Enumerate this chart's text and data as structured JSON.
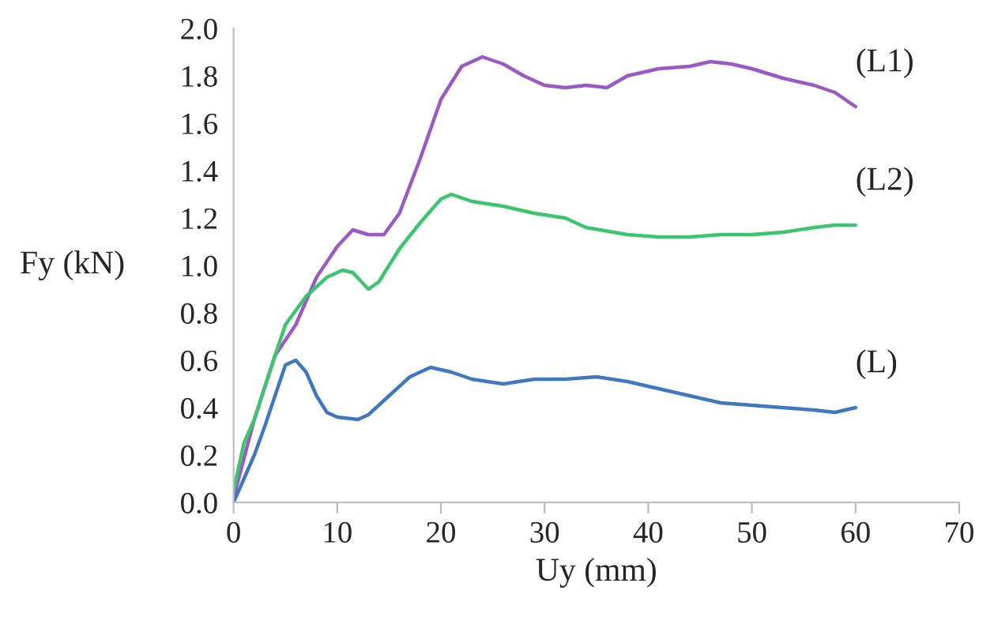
{
  "chart_data": {
    "type": "line",
    "xlabel": "Uy (mm)",
    "ylabel": "Fy (kN)",
    "xlim": [
      0,
      70
    ],
    "xticks": [
      0,
      10,
      20,
      30,
      40,
      50,
      60,
      70
    ],
    "ylim": [
      0,
      2.0
    ],
    "yticks": [
      {
        "value": 0,
        "label": "0.0"
      },
      {
        "value": 0.2,
        "label": "0.2"
      },
      {
        "value": 0.4,
        "label": "0.4"
      },
      {
        "value": 0.6,
        "label": "0.6"
      },
      {
        "value": 0.8,
        "label": "0.8"
      },
      {
        "value": 1.0,
        "label": "1.0"
      },
      {
        "value": 1.2,
        "label": "1.2"
      },
      {
        "value": 1.4,
        "label": "1.4"
      },
      {
        "value": 1.6,
        "label": "1.6"
      },
      {
        "value": 1.8,
        "label": "1.8"
      },
      {
        "value": 2.0,
        "label": "2.0"
      }
    ],
    "grid": false,
    "legend": false,
    "marker": "none",
    "line_style": "solid",
    "series": [
      {
        "name": "(L1)",
        "color": "#9b59c6",
        "x": [
          0,
          2,
          4,
          6,
          8,
          10,
          11.5,
          13,
          14.5,
          16,
          18,
          20,
          22,
          24,
          26,
          28,
          30,
          32,
          34,
          36,
          38,
          41,
          44,
          46,
          48,
          50,
          53,
          56,
          58,
          60
        ],
        "values": [
          0.02,
          0.35,
          0.62,
          0.75,
          0.95,
          1.08,
          1.15,
          1.13,
          1.13,
          1.22,
          1.45,
          1.7,
          1.84,
          1.88,
          1.85,
          1.8,
          1.76,
          1.75,
          1.76,
          1.75,
          1.8,
          1.83,
          1.84,
          1.86,
          1.85,
          1.83,
          1.79,
          1.76,
          1.73,
          1.67
        ]
      },
      {
        "name": "(L2)",
        "color": "#3cc46e",
        "x": [
          0,
          1,
          2,
          4,
          5,
          7,
          9,
          10.5,
          11.5,
          13,
          14,
          16,
          18,
          20,
          21,
          23,
          26,
          29,
          32,
          34,
          38,
          41,
          44,
          47,
          50,
          53,
          56,
          58,
          60
        ],
        "values": [
          0.05,
          0.25,
          0.35,
          0.62,
          0.75,
          0.87,
          0.95,
          0.98,
          0.97,
          0.9,
          0.93,
          1.07,
          1.18,
          1.28,
          1.3,
          1.27,
          1.25,
          1.22,
          1.2,
          1.16,
          1.13,
          1.12,
          1.12,
          1.13,
          1.13,
          1.14,
          1.16,
          1.17,
          1.17
        ]
      },
      {
        "name": "(L)",
        "color": "#3f78c0",
        "x": [
          0,
          1,
          2,
          3,
          4,
          5,
          6,
          7,
          8,
          9,
          10,
          12,
          13,
          15,
          17,
          19,
          21,
          23,
          26,
          29,
          32,
          35,
          38,
          41,
          44,
          47,
          50,
          53,
          56,
          58,
          60
        ],
        "values": [
          0.0,
          0.1,
          0.2,
          0.32,
          0.45,
          0.58,
          0.6,
          0.55,
          0.45,
          0.38,
          0.36,
          0.35,
          0.37,
          0.45,
          0.53,
          0.57,
          0.55,
          0.52,
          0.5,
          0.52,
          0.52,
          0.53,
          0.51,
          0.48,
          0.45,
          0.42,
          0.41,
          0.4,
          0.39,
          0.38,
          0.4
        ]
      }
    ]
  }
}
